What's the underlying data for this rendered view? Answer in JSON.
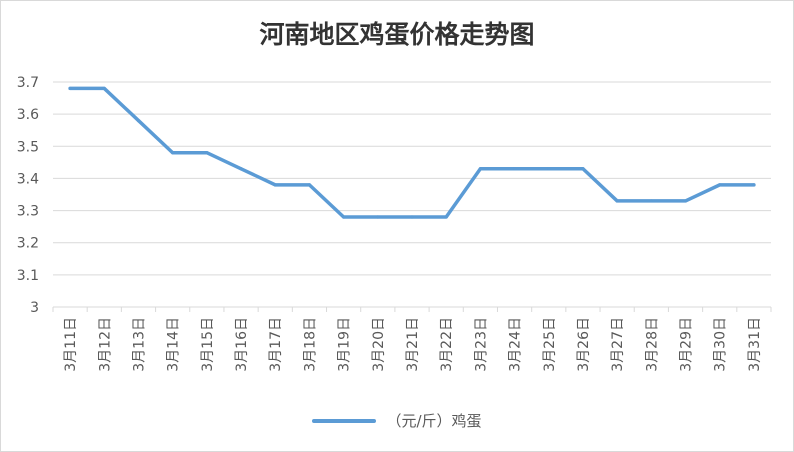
{
  "chart_data": {
    "type": "line",
    "title": "河南地区鸡蛋价格走势图",
    "categories": [
      "3月11日",
      "3月12日",
      "3月13日",
      "3月14日",
      "3月15日",
      "3月16日",
      "3月17日",
      "3月18日",
      "3月19日",
      "3月20日",
      "3月21日",
      "3月22日",
      "3月23日",
      "3月24日",
      "3月25日",
      "3月26日",
      "3月27日",
      "3月28日",
      "3月29日",
      "3月30日",
      "3月31日"
    ],
    "series": [
      {
        "name": "（元/斤）鸡蛋",
        "color": "#5b9bd5",
        "values": [
          3.68,
          3.68,
          3.58,
          3.48,
          3.48,
          3.43,
          3.38,
          3.38,
          3.28,
          3.28,
          3.28,
          3.28,
          3.43,
          3.43,
          3.43,
          3.43,
          3.33,
          3.33,
          3.33,
          3.38,
          3.38
        ]
      }
    ],
    "ylim": [
      3,
      3.7
    ],
    "yticks": [
      "3.7",
      "3.6",
      "3.5",
      "3.4",
      "3.3",
      "3.2",
      "3.1",
      "3"
    ],
    "grid": true,
    "legend": "bottom"
  }
}
